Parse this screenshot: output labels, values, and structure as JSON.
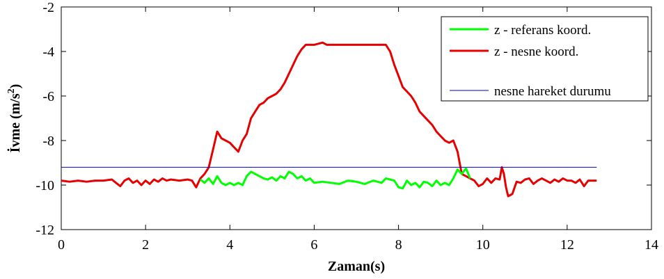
{
  "chart_data": {
    "type": "line",
    "xlabel": "Zaman(s)",
    "ylabel_main": "İvme (m/s",
    "ylabel_sup": "2",
    "ylabel_close": ")",
    "xlim": [
      0,
      14
    ],
    "ylim": [
      -12,
      -2
    ],
    "xticks": [
      0,
      2,
      4,
      6,
      8,
      10,
      12,
      14
    ],
    "yticks": [
      -2,
      -4,
      -6,
      -8,
      -10,
      -12
    ],
    "grid": false,
    "legend_position": "top-right",
    "series": [
      {
        "name": "z - referans koord.",
        "color": "#00ff00",
        "x": [
          3.3,
          3.4,
          3.5,
          3.6,
          3.7,
          3.8,
          3.9,
          4.0,
          4.1,
          4.2,
          4.3,
          4.4,
          4.5,
          4.6,
          4.7,
          4.8,
          4.9,
          5.0,
          5.1,
          5.2,
          5.3,
          5.4,
          5.5,
          5.6,
          5.7,
          5.8,
          5.9,
          6.0,
          6.2,
          6.4,
          6.6,
          6.8,
          7.0,
          7.2,
          7.4,
          7.6,
          7.7,
          7.8,
          7.9,
          8.0,
          8.1,
          8.2,
          8.3,
          8.4,
          8.5,
          8.6,
          8.7,
          8.8,
          8.9,
          9.0,
          9.1,
          9.2,
          9.3,
          9.4,
          9.5,
          9.6,
          9.7
        ],
        "y": [
          -9.75,
          -9.9,
          -9.7,
          -9.95,
          -9.6,
          -9.9,
          -10.0,
          -9.9,
          -10.0,
          -9.9,
          -10.0,
          -9.6,
          -9.4,
          -9.5,
          -9.6,
          -9.7,
          -9.75,
          -9.65,
          -9.8,
          -9.6,
          -9.7,
          -9.4,
          -9.5,
          -9.7,
          -9.6,
          -9.8,
          -9.7,
          -9.9,
          -9.85,
          -9.9,
          -9.95,
          -9.8,
          -9.85,
          -9.95,
          -9.8,
          -9.9,
          -9.7,
          -9.75,
          -9.8,
          -10.1,
          -10.15,
          -9.8,
          -10.0,
          -9.9,
          -10.1,
          -9.85,
          -9.9,
          -10.05,
          -9.8,
          -10.0,
          -9.9,
          -10.0,
          -9.7,
          -9.3,
          -9.5,
          -9.25,
          -9.7
        ]
      },
      {
        "name": "z - nesne koord.",
        "color": "#e60000",
        "x": [
          0.0,
          0.2,
          0.4,
          0.6,
          0.8,
          1.0,
          1.2,
          1.3,
          1.4,
          1.5,
          1.6,
          1.7,
          1.8,
          1.9,
          2.0,
          2.1,
          2.2,
          2.3,
          2.4,
          2.5,
          2.6,
          2.8,
          3.0,
          3.1,
          3.2,
          3.3,
          3.4,
          3.5,
          3.6,
          3.7,
          3.8,
          3.9,
          4.0,
          4.1,
          4.2,
          4.3,
          4.4,
          4.5,
          4.6,
          4.7,
          4.8,
          4.9,
          5.0,
          5.1,
          5.2,
          5.3,
          5.4,
          5.5,
          5.6,
          5.7,
          5.8,
          5.9,
          6.0,
          6.1,
          6.2,
          6.3,
          6.4,
          6.6,
          6.8,
          7.0,
          7.2,
          7.4,
          7.6,
          7.7,
          7.8,
          7.9,
          8.0,
          8.1,
          8.2,
          8.3,
          8.4,
          8.5,
          8.6,
          8.7,
          8.8,
          8.9,
          9.0,
          9.1,
          9.2,
          9.3,
          9.4,
          9.5,
          9.6,
          9.7,
          9.8,
          9.9,
          10.0,
          10.1,
          10.2,
          10.3,
          10.4,
          10.45,
          10.5,
          10.55,
          10.6,
          10.7,
          10.8,
          10.9,
          11.0,
          11.1,
          11.2,
          11.3,
          11.4,
          11.5,
          11.6,
          11.7,
          11.8,
          11.9,
          12.0,
          12.1,
          12.2,
          12.3,
          12.4,
          12.5,
          12.6,
          12.7
        ],
        "y": [
          -9.8,
          -9.85,
          -9.8,
          -9.85,
          -9.8,
          -9.8,
          -9.75,
          -9.9,
          -10.05,
          -9.8,
          -9.7,
          -9.9,
          -9.8,
          -10.0,
          -9.8,
          -9.95,
          -9.75,
          -9.85,
          -9.7,
          -9.8,
          -9.75,
          -9.8,
          -9.75,
          -9.8,
          -10.1,
          -9.7,
          -9.5,
          -9.2,
          -8.4,
          -7.6,
          -7.9,
          -8.0,
          -8.1,
          -8.3,
          -8.5,
          -8.0,
          -7.7,
          -7.0,
          -6.7,
          -6.4,
          -6.3,
          -6.1,
          -6.0,
          -5.9,
          -5.7,
          -5.4,
          -5.0,
          -4.6,
          -4.2,
          -3.9,
          -3.7,
          -3.7,
          -3.7,
          -3.65,
          -3.6,
          -3.7,
          -3.7,
          -3.7,
          -3.7,
          -3.7,
          -3.7,
          -3.7,
          -3.7,
          -3.7,
          -4.0,
          -4.6,
          -5.1,
          -5.6,
          -5.8,
          -6.0,
          -6.3,
          -6.7,
          -6.9,
          -7.1,
          -7.3,
          -7.6,
          -7.8,
          -8.0,
          -8.1,
          -8.0,
          -8.5,
          -9.5,
          -9.6,
          -9.7,
          -9.8,
          -10.05,
          -9.95,
          -9.7,
          -9.9,
          -9.7,
          -9.75,
          -9.2,
          -9.5,
          -10.1,
          -10.5,
          -10.4,
          -9.85,
          -9.9,
          -9.75,
          -9.7,
          -9.95,
          -9.8,
          -9.7,
          -9.8,
          -9.9,
          -9.75,
          -9.85,
          -9.7,
          -9.8,
          -9.8,
          -9.9,
          -9.75,
          -10.05,
          -9.8,
          -9.8,
          -9.8
        ]
      },
      {
        "name": "nesne hareket durumu",
        "color": "#0000c8",
        "x": [
          0.0,
          12.7
        ],
        "y": [
          -9.2,
          -9.2
        ]
      }
    ]
  }
}
